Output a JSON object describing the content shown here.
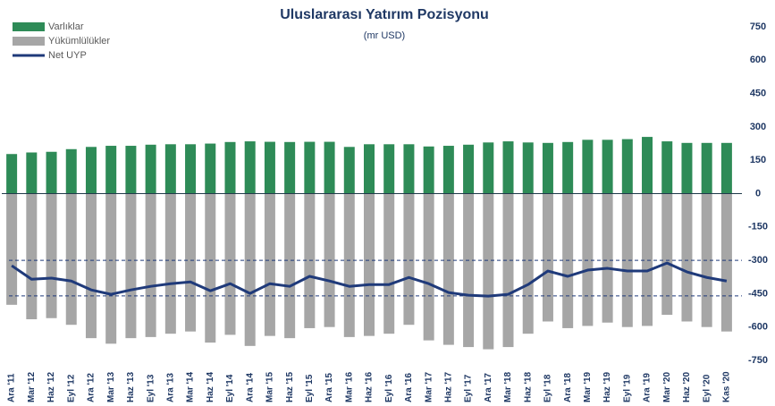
{
  "chart_data": {
    "type": "bar-line",
    "title": "Uluslararası  Yatırım Pozisyonu",
    "subtitle": "(mr USD)",
    "categories": [
      "Ara '11",
      "Mar '12",
      "Haz '12",
      "Eyl '12",
      "Ara '12",
      "Mar '13",
      "Haz '13",
      "Eyl '13",
      "Ara '13",
      "Mar '14",
      "Haz '14",
      "Eyl '14",
      "Ara '14",
      "Mar '15",
      "Haz '15",
      "Eyl '15",
      "Ara '15",
      "Mar '16",
      "Haz '16",
      "Eyl '16",
      "Ara '16",
      "Mar '17",
      "Haz '17",
      "Eyl '17",
      "Ara '17",
      "Mar '18",
      "Haz '18",
      "Eyl '18",
      "Ara '18",
      "Mar '19",
      "Haz '19",
      "Eyl '19",
      "Ara '19",
      "Mar '20",
      "Haz '20",
      "Eyl '20",
      "Kas '20"
    ],
    "series": [
      {
        "name": "Varlıklar",
        "kind": "bar",
        "color": "#2e8b57",
        "values": [
          178,
          185,
          188,
          200,
          210,
          215,
          215,
          220,
          222,
          222,
          225,
          232,
          235,
          233,
          232,
          233,
          233,
          210,
          222,
          222,
          222,
          212,
          215,
          220,
          230,
          235,
          230,
          228,
          232,
          242,
          242,
          245,
          255,
          235,
          228,
          228,
          228
        ]
      },
      {
        "name": "Yükümlülükler",
        "kind": "bar",
        "color": "#a6a6a6",
        "values": [
          -500,
          -565,
          -560,
          -590,
          -650,
          -675,
          -650,
          -645,
          -630,
          -620,
          -670,
          -635,
          -685,
          -640,
          -650,
          -605,
          -600,
          -645,
          -640,
          -630,
          -590,
          -660,
          -680,
          -690,
          -700,
          -690,
          -630,
          -575,
          -605,
          -595,
          -580,
          -600,
          -595,
          -545,
          -575,
          -600,
          -620
        ]
      },
      {
        "name": "Net UYP",
        "kind": "line",
        "color": "#1f3a7a",
        "values": [
          -324,
          -385,
          -380,
          -393,
          -433,
          -453,
          -433,
          -417,
          -405,
          -397,
          -437,
          -405,
          -449,
          -405,
          -417,
          -372,
          -393,
          -417,
          -409,
          -409,
          -377,
          -405,
          -445,
          -457,
          -461,
          -453,
          -409,
          -348,
          -372,
          -344,
          -336,
          -348,
          -348,
          -312,
          -352,
          -377,
          -393
        ]
      }
    ],
    "ylim": [
      -750,
      750
    ],
    "yticks": [
      750,
      600,
      450,
      300,
      150,
      0,
      -150,
      -300,
      -450,
      -600,
      -750
    ],
    "reference_lines": [
      -300,
      -460
    ],
    "legend": "top-left"
  }
}
